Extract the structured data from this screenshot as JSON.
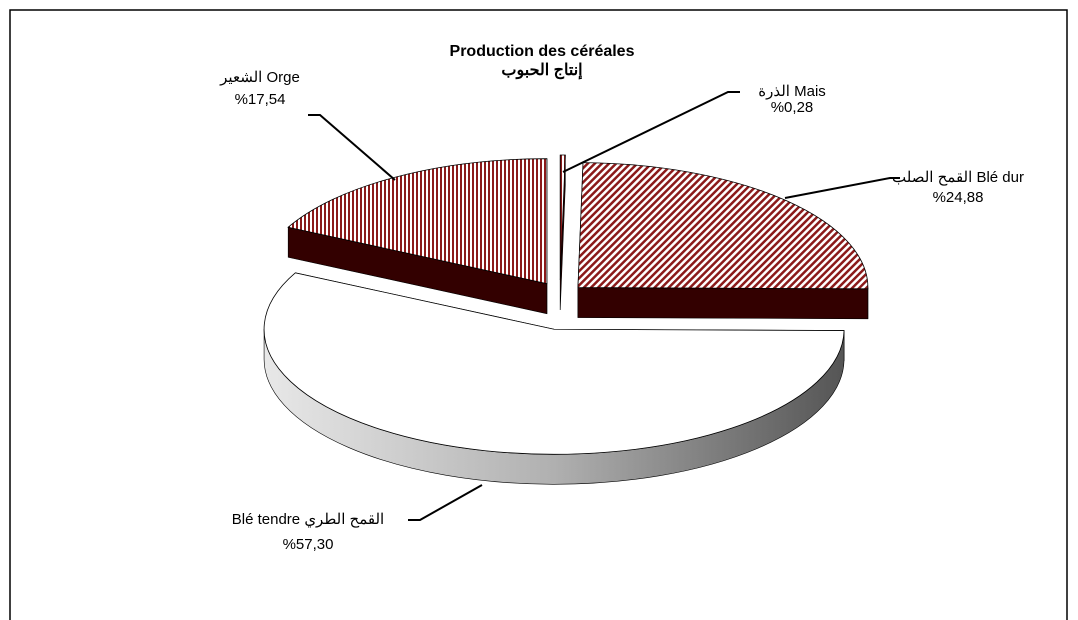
{
  "chart_data": {
    "type": "pie3d",
    "title": "Production des céréales",
    "subtitle": "إنتاج الحبوب",
    "categories": [
      "الذرة Mais",
      "القمح الصلب Blé dur",
      "Blé tendre القمح الطري",
      "الشعير Orge"
    ],
    "values": [
      0.28,
      24.88,
      57.3,
      17.54
    ],
    "value_labels": [
      "%0,28",
      "%24,88",
      "%57,30",
      "%17,54"
    ],
    "colors": [
      "#8b1a1a",
      "#8b1a1a",
      "#ffffff",
      "#8b1a1a"
    ]
  }
}
